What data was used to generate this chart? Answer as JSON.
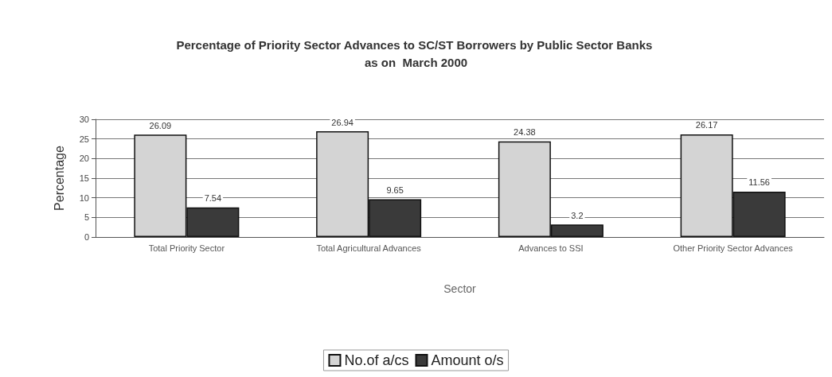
{
  "chart_data": {
    "type": "bar",
    "title": "Percentage of Priority Sector Advances to SC/ST Borrowers by Public Sector Banks as on  March 2000",
    "xlabel": "Sector",
    "ylabel": "Percentage",
    "categories": [
      "Total Priority Sector",
      "Total Agricultural Advances",
      "Advances to SSI",
      "Other Priority Sector Advances"
    ],
    "series": [
      {
        "name": "No.of a/cs",
        "color": "#d4d4d4",
        "values": [
          26.09,
          26.94,
          24.38,
          26.17
        ]
      },
      {
        "name": "Amount o/s",
        "color": "#3a3a3a",
        "values": [
          7.54,
          9.65,
          3.2,
          11.56
        ]
      }
    ],
    "ylim": [
      0,
      30
    ],
    "yticks": [
      0,
      5,
      10,
      15,
      20,
      25,
      30
    ],
    "grid": "y",
    "legend": "bottom",
    "data_labels": true
  }
}
